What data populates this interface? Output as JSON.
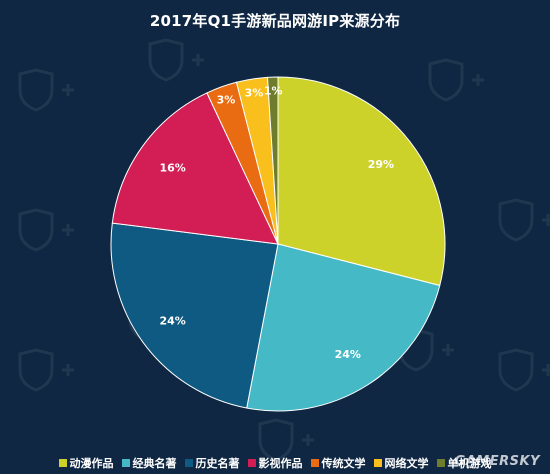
{
  "site_mark": "GAMERSKY",
  "chart_data": {
    "type": "pie",
    "title": "2017年Q1手游新品网游IP来源分布",
    "legend_position": "bottom",
    "categories": [
      "动漫作品",
      "经典名著",
      "历史名著",
      "影视作品",
      "传统文学",
      "网络文学",
      "单机游戏"
    ],
    "values": [
      29,
      24,
      24,
      16,
      3,
      3,
      1
    ],
    "labels": [
      "29%",
      "24%",
      "24%",
      "16%",
      "3%",
      "3%",
      "1%"
    ],
    "colors": [
      "#cdd22a",
      "#45b9c6",
      "#0f5a82",
      "#d21e54",
      "#ea6c12",
      "#f9bf1c",
      "#6e7d2c"
    ]
  }
}
